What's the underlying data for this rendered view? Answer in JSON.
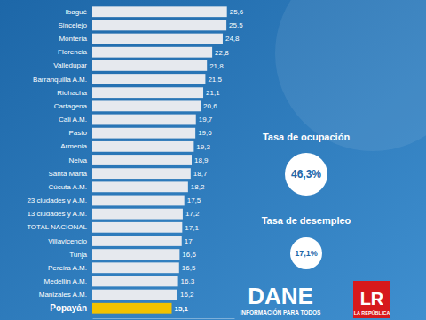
{
  "chart_data": {
    "type": "bar",
    "orientation": "horizontal",
    "data_labels": true,
    "tick_labels": "y",
    "grid": false,
    "categories": [
      "Ibagué",
      "Sincelejo",
      "Montería",
      "Florencia",
      "Valledupar",
      "Barranquilla A.M.",
      "Riohacha",
      "Cartagena",
      "Cali A.M.",
      "Pasto",
      "Armenia",
      "Neiva",
      "Santa Marta",
      "Cúcuta A.M.",
      "23 ciudades y A.M.",
      "13 ciudades y A.M.",
      "TOTAL NACIONAL",
      "Villavicencio",
      "Tunja",
      "Pereira A.M.",
      "Medellín A.M.",
      "Manizales A.M.",
      "Popayán"
    ],
    "values": [
      25.6,
      25.5,
      24.8,
      22.8,
      21.8,
      21.5,
      21.1,
      20.6,
      19.7,
      19.6,
      19.3,
      18.9,
      18.7,
      18.2,
      17.5,
      17.2,
      17.1,
      17,
      16.6,
      16.5,
      16.3,
      16.2,
      15.1
    ],
    "value_labels": [
      "25,6",
      "25,5",
      "24,8",
      "22,8",
      "21,8",
      "21,5",
      "21,1",
      "20,6",
      "19,7",
      "19,6",
      "19,3",
      "18,9",
      "18,7",
      "18,2",
      "17,5",
      "17,2",
      "17,1",
      "17",
      "16,6",
      "16,5",
      "16,3",
      "16,2",
      "15,1"
    ],
    "colors": [
      "#e6e9ee",
      "#e6e9ee",
      "#e6e9ee",
      "#e6e9ee",
      "#e6e9ee",
      "#e6e9ee",
      "#e6e9ee",
      "#e6e9ee",
      "#e6e9ee",
      "#e6e9ee",
      "#e6e9ee",
      "#e6e9ee",
      "#e6e9ee",
      "#e6e9ee",
      "#e6e9ee",
      "#e6e9ee",
      "#e6e9ee",
      "#e6e9ee",
      "#e6e9ee",
      "#e6e9ee",
      "#e6e9ee",
      "#e6e9ee",
      "#f2c200"
    ],
    "xlim": [
      0,
      27
    ],
    "annotations": [
      "Tasa de ocupación",
      "46,3%",
      "Tasa de desempleo",
      "17,1%",
      "DANE",
      "INFORMACIÓN PARA TODOS",
      "LR",
      "LA REPÚBLICA"
    ]
  }
}
